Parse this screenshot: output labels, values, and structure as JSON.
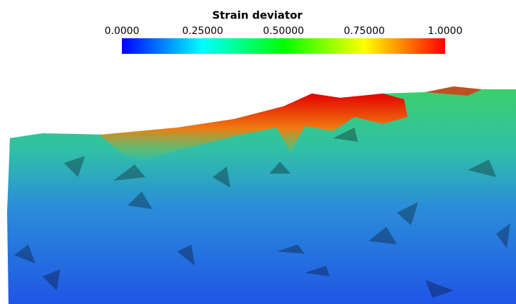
{
  "colorbar": {
    "title": "Strain deviator",
    "lim": [
      0,
      1
    ],
    "ticks": [
      {
        "value": 0,
        "label": "0.0000"
      },
      {
        "value": 0.25,
        "label": "0.25000"
      },
      {
        "value": 0.5,
        "label": "0.50000"
      },
      {
        "value": 0.75,
        "label": "0.75000"
      },
      {
        "value": 1,
        "label": "1.0000"
      }
    ],
    "colors": [
      "#0000ff",
      "#00ffff",
      "#00ff00",
      "#ffff00",
      "#ff0000"
    ]
  }
}
